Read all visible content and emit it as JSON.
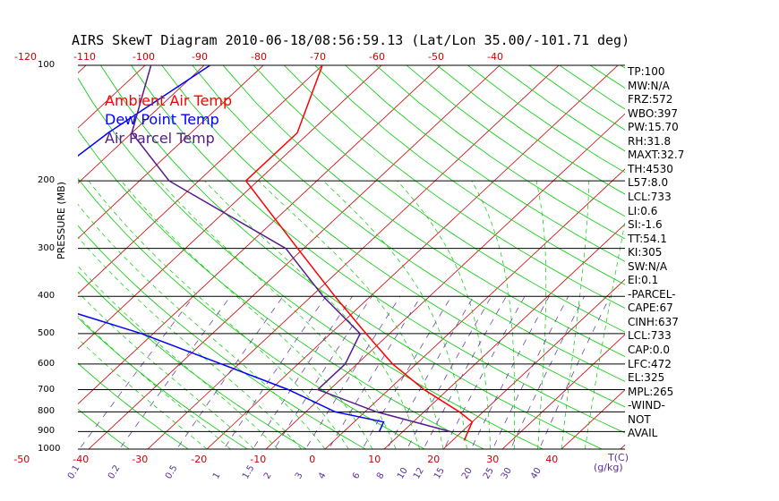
{
  "chart_data": {
    "type": "line",
    "title": "AIRS SkewT Diagram 2010-06-18/08:56:59.13 (Lat/Lon 35.00/-101.71 deg)",
    "ylabel": "PRESSURE (MB)",
    "pressure_ticks": [
      "100",
      "200",
      "300",
      "400",
      "500",
      "600",
      "700",
      "800",
      "900",
      "1000"
    ],
    "temp_ticks_top": [
      "-120",
      "-110",
      "-100",
      "-90",
      "-80",
      "-70",
      "-60",
      "-50",
      "-40"
    ],
    "temp_ticks_bottom": [
      "-50",
      "-40",
      "-30",
      "-20",
      "-10",
      "0",
      "10",
      "20",
      "30",
      "40"
    ],
    "temp_unit_label": "T(C)",
    "mixing_ratio_labels": [
      "0.1",
      "0.2",
      "0.5",
      "1",
      "1.5",
      "2",
      "3",
      "4",
      "6",
      "8",
      "10",
      "12",
      "15",
      "20",
      "25",
      "30",
      "40"
    ],
    "mixing_ratio_unit": "(g/kg)",
    "legend": [
      "Ambient Air Temp",
      "Dew Point Temp",
      "Air Parcel Temp"
    ],
    "series": [
      {
        "name": "Ambient Air Temp",
        "color": "#ff0000",
        "points": [
          [
            100,
            -70
          ],
          [
            150,
            -62
          ],
          [
            200,
            -62
          ],
          [
            300,
            -41
          ],
          [
            400,
            -26
          ],
          [
            500,
            -14
          ],
          [
            600,
            -4
          ],
          [
            700,
            6
          ],
          [
            800,
            16
          ],
          [
            850,
            20
          ],
          [
            900,
            21
          ],
          [
            950,
            22
          ]
        ]
      },
      {
        "name": "Dew Point Temp",
        "color": "#0000ff",
        "points": [
          [
            100,
            -89
          ],
          [
            150,
            -94
          ],
          [
            200,
            -96
          ],
          [
            250,
            -95
          ],
          [
            300,
            -95
          ],
          [
            400,
            -79
          ],
          [
            500,
            -52
          ],
          [
            600,
            -33
          ],
          [
            700,
            -17
          ],
          [
            800,
            -5
          ],
          [
            850,
            5
          ],
          [
            900,
            6
          ]
        ]
      },
      {
        "name": "Air Parcel Temp",
        "color": "#551a8b",
        "points": [
          [
            100,
            -99
          ],
          [
            150,
            -90
          ],
          [
            200,
            -75
          ],
          [
            300,
            -43
          ],
          [
            400,
            -28
          ],
          [
            500,
            -15
          ],
          [
            600,
            -12
          ],
          [
            700,
            -12
          ],
          [
            800,
            2
          ],
          [
            900,
            18
          ]
        ]
      }
    ],
    "indices": [
      "TP:100",
      "MW:N/A",
      "FRZ:572",
      "WBO:397",
      "PW:15.70",
      "RH:31.8",
      "MAXT:32.7",
      "TH:4530",
      "L57:8.0",
      "LCL:733",
      "LI:0.6",
      "SI:-1.6",
      "TT:54.1",
      "KI:305",
      "SW:N/A",
      "EI:0.1",
      "-PARCEL-",
      "CAPE:67",
      "CINH:637",
      "LCL:733",
      "CAP:0.0",
      "LFC:472",
      "EL:325",
      "MPL:265",
      "-WIND-",
      "NOT",
      "AVAIL"
    ],
    "colors": {
      "isotherm": "#cc0000",
      "dry_adiabat": "#00cc00",
      "moist_adiabat": "#00cc00",
      "mixing_ratio": "#5a2da0",
      "isobar": "#000000"
    },
    "grid": true,
    "legend_position": "top-left"
  }
}
